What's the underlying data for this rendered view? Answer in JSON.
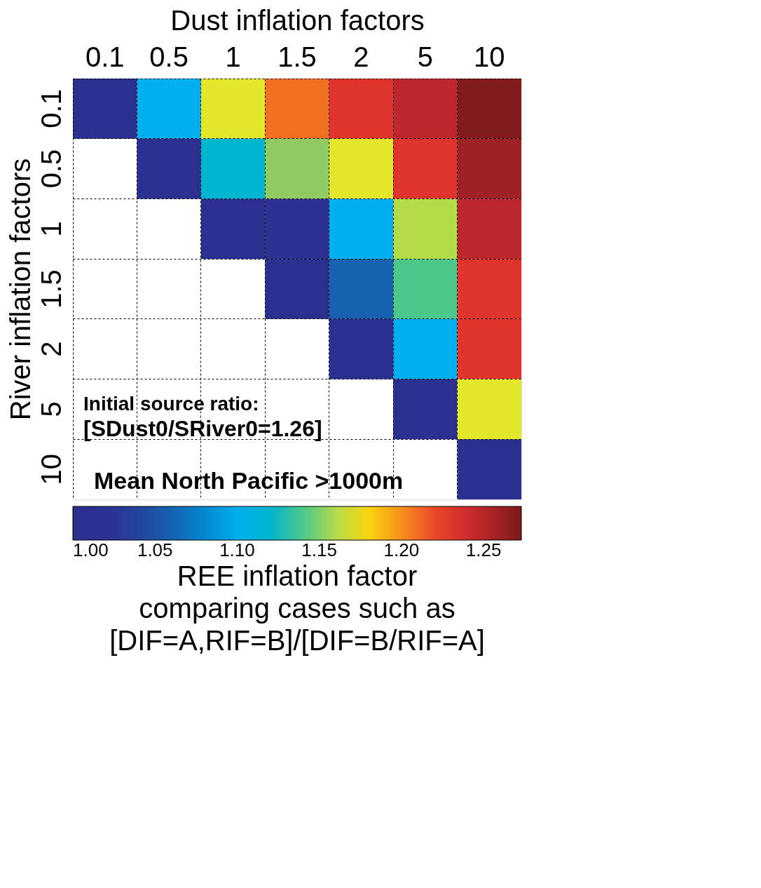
{
  "chart_data": {
    "type": "heatmap",
    "xlabel": "Dust inflation factors",
    "ylabel": "River inflation factors",
    "clabel": "REE inflation factor\ncomparing cases such as\n[DIF=A,RIF=B]/[DIF=B/RIF=A]",
    "categories": [
      "0.1",
      "0.5",
      "1",
      "1.5",
      "2",
      "5",
      "10"
    ],
    "y_categories": [
      "0.1",
      "0.5",
      "1",
      "1.5",
      "2",
      "5",
      "10"
    ],
    "cells": [
      [
        1.0,
        1.1,
        1.17,
        1.21,
        1.23,
        1.25,
        1.27
      ],
      [
        null,
        1.0,
        1.12,
        1.15,
        1.17,
        1.23,
        1.26
      ],
      [
        null,
        null,
        1.0,
        1.02,
        1.1,
        1.16,
        1.25
      ],
      [
        null,
        null,
        null,
        1.0,
        1.06,
        1.14,
        1.23
      ],
      [
        null,
        null,
        null,
        null,
        1.0,
        1.1,
        1.23
      ],
      [
        null,
        null,
        null,
        null,
        null,
        1.0,
        1.17
      ],
      [
        null,
        null,
        null,
        null,
        null,
        null,
        1.0
      ]
    ],
    "clim": [
      1.0,
      1.273
    ],
    "cticks": [
      {
        "value": 1.0,
        "label": "1.00"
      },
      {
        "value": 1.05,
        "label": "1.05"
      },
      {
        "value": 1.1,
        "label": "1.10"
      },
      {
        "value": 1.15,
        "label": "1.15"
      },
      {
        "value": 1.2,
        "label": "1.20"
      },
      {
        "value": 1.25,
        "label": "1.25"
      }
    ],
    "grid": true,
    "annotations": [
      "Initial source ratio:",
      "[SDust0/SRiver0=1.26]",
      "Mean North Pacific >1000m"
    ]
  }
}
